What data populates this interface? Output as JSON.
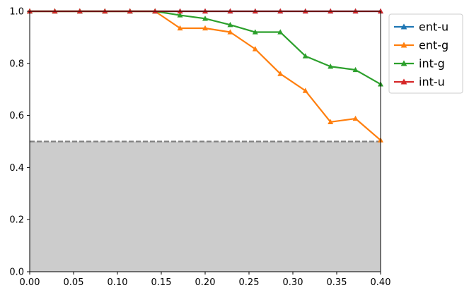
{
  "chart_data": {
    "type": "line",
    "title": "",
    "xlabel": "",
    "ylabel": "",
    "xlim": [
      0.0,
      0.4
    ],
    "ylim": [
      0.0,
      1.0
    ],
    "grid": false,
    "legend_placement": "outside-top-right",
    "x_ticks": [
      "0.00",
      "0.05",
      "0.10",
      "0.15",
      "0.20",
      "0.25",
      "0.30",
      "0.35",
      "0.40"
    ],
    "y_ticks": [
      "0.0",
      "0.2",
      "0.4",
      "0.6",
      "0.8",
      "1.0"
    ],
    "x": [
      0.0,
      0.0286,
      0.0571,
      0.0857,
      0.1143,
      0.1429,
      0.1714,
      0.2,
      0.2286,
      0.2571,
      0.2857,
      0.3143,
      0.3429,
      0.3714,
      0.4
    ],
    "threshold": {
      "y": 0.5,
      "color": "#808080",
      "style": "dashed"
    },
    "shaded_region": {
      "y_from": 0.0,
      "y_to": 0.5,
      "color": "#cccccc"
    },
    "series": [
      {
        "name": "ent-u",
        "color": "#1f77b4",
        "marker": "triangle-up",
        "values": [
          1,
          1,
          1,
          1,
          1,
          1,
          1,
          1,
          1,
          1,
          1,
          1,
          1,
          1,
          1
        ]
      },
      {
        "name": "ent-g",
        "color": "#ff7f0e",
        "marker": "triangle-up",
        "values": [
          1,
          1,
          1,
          1,
          1,
          1,
          0.935,
          0.935,
          0.92,
          0.855,
          0.76,
          0.695,
          0.575,
          0.588,
          0.505
        ]
      },
      {
        "name": "int-g",
        "color": "#2ca02c",
        "marker": "triangle-up",
        "values": [
          1,
          1,
          1,
          1,
          1,
          1,
          0.985,
          0.972,
          0.948,
          0.92,
          0.92,
          0.828,
          0.788,
          0.775,
          0.72
        ]
      },
      {
        "name": "int-u",
        "color": "#d62728",
        "marker": "triangle-up",
        "values": [
          1,
          1,
          1,
          1,
          1,
          1,
          1,
          1,
          1,
          1,
          1,
          1,
          1,
          1,
          1
        ]
      }
    ]
  }
}
